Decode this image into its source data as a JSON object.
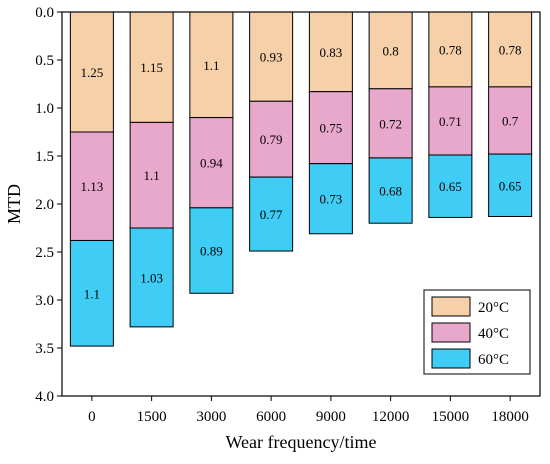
{
  "chart_data": {
    "type": "bar",
    "stacked": true,
    "y_inverted": true,
    "xlabel": "Wear frequency/time",
    "ylabel": "MTD",
    "ylim": [
      0.0,
      4.0
    ],
    "yticks": [
      "0.0",
      "0.5",
      "1.0",
      "1.5",
      "2.0",
      "2.5",
      "3.0",
      "3.5",
      "4.0"
    ],
    "categories": [
      "0",
      "1500",
      "3000",
      "6000",
      "9000",
      "12000",
      "15000",
      "18000"
    ],
    "series": [
      {
        "name": "20°C",
        "color": "#f5d0a8",
        "values": [
          1.25,
          1.15,
          1.1,
          0.93,
          0.83,
          0.8,
          0.78,
          0.78
        ],
        "labels": [
          "1.25",
          "1.15",
          "1.1",
          "0.93",
          "0.83",
          "0.8",
          "0.78",
          "0.78"
        ]
      },
      {
        "name": "40°C",
        "color": "#e8a8cc",
        "values": [
          1.13,
          1.1,
          0.94,
          0.79,
          0.75,
          0.72,
          0.71,
          0.7
        ],
        "labels": [
          "1.13",
          "1.1",
          "0.94",
          "0.79",
          "0.75",
          "0.72",
          "0.71",
          "0.7"
        ]
      },
      {
        "name": "60°C",
        "color": "#3fcdf5",
        "values": [
          1.1,
          1.03,
          0.89,
          0.77,
          0.73,
          0.68,
          0.65,
          0.65
        ],
        "labels": [
          "1.1",
          "1.03",
          "0.89",
          "0.77",
          "0.73",
          "0.68",
          "0.65",
          "0.65"
        ]
      }
    ],
    "legend_position": "bottom-right",
    "grid": false
  }
}
